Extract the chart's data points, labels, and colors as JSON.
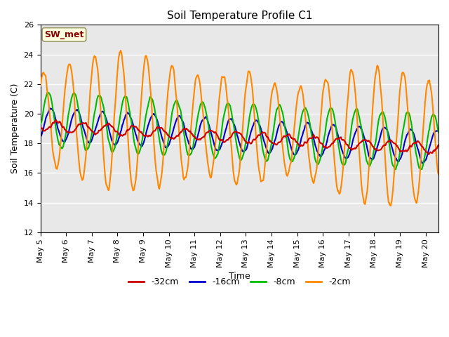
{
  "title": "Soil Temperature Profile C1",
  "xlabel": "Time",
  "ylabel": "Soil Temperature (C)",
  "ylim": [
    12,
    26
  ],
  "xlim_days": [
    0,
    15.5
  ],
  "annotation_text": "SW_met",
  "annotation_color": "#8B0000",
  "annotation_bg": "#FFFFE0",
  "annotation_edge": "#999966",
  "bg_color": "#E8E8E8",
  "series_32cm_color": "#CC0000",
  "series_16cm_color": "#0000CC",
  "series_8cm_color": "#00BB00",
  "series_2cm_color": "#FF8800",
  "legend_entries": [
    "-32cm",
    "-16cm",
    "-8cm",
    "-2cm"
  ],
  "legend_colors": [
    "#CC0000",
    "#0000CC",
    "#00BB00",
    "#FF8800"
  ],
  "x_tick_labels": [
    "May 5",
    "May 6",
    "May 7",
    "May 8",
    "May 9",
    "May 10",
    "May 11",
    "May 12",
    "May 13",
    "May 14",
    "May 15",
    "May 16",
    "May 17",
    "May 18",
    "May 19",
    "May 20"
  ],
  "x_tick_positions": [
    0,
    1,
    2,
    3,
    4,
    5,
    6,
    7,
    8,
    9,
    10,
    11,
    12,
    13,
    14,
    15
  ],
  "y_ticks": [
    12,
    14,
    16,
    18,
    20,
    22,
    24,
    26
  ],
  "grid_color": "#FFFFFF",
  "lw": 1.5
}
